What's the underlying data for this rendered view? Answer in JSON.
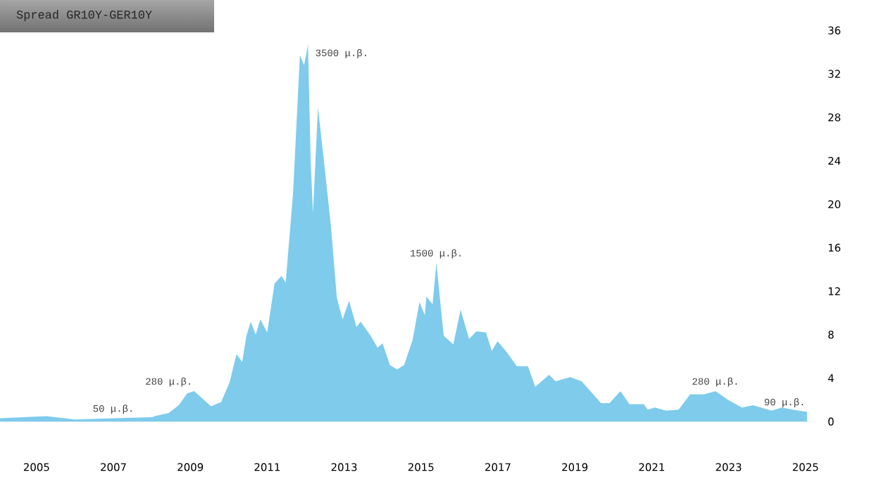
{
  "chart_data": {
    "type": "area",
    "title": "Spread GR10Y-GER10Y",
    "color": "#7ecbec",
    "x": [
      2004.05,
      2005.26,
      2006.0,
      2007.0,
      2008.0,
      2008.08,
      2008.44,
      2008.7,
      2008.92,
      2009.1,
      2009.54,
      2009.8,
      2010.02,
      2010.2,
      2010.35,
      2010.46,
      2010.57,
      2010.7,
      2010.82,
      2011.0,
      2011.19,
      2011.37,
      2011.48,
      2011.67,
      2011.85,
      2011.96,
      2012.06,
      2012.13,
      2012.19,
      2012.32,
      2012.45,
      2012.66,
      2012.81,
      2012.96,
      2013.13,
      2013.32,
      2013.43,
      2013.69,
      2013.87,
      2014.0,
      2014.19,
      2014.38,
      2014.56,
      2014.78,
      2014.96,
      2015.1,
      2015.14,
      2015.3,
      2015.4,
      2015.59,
      2015.84,
      2016.03,
      2016.25,
      2016.44,
      2016.69,
      2016.84,
      2016.99,
      2017.23,
      2017.49,
      2017.78,
      2017.97,
      2018.2,
      2018.33,
      2018.5,
      2018.88,
      2019.18,
      2019.68,
      2019.9,
      2020.19,
      2020.42,
      2020.79,
      2020.9,
      2021.08,
      2021.38,
      2021.7,
      2022.0,
      2022.36,
      2022.66,
      2022.98,
      2023.35,
      2023.64,
      2024.12,
      2024.38,
      2024.82,
      2025.04
    ],
    "values": [
      0.3,
      0.5,
      0.2,
      0.3,
      0.4,
      0.5,
      0.8,
      1.5,
      2.6,
      2.8,
      1.4,
      1.8,
      3.6,
      6.2,
      5.5,
      7.9,
      9.2,
      8.0,
      9.4,
      8.2,
      12.7,
      13.4,
      12.8,
      20.9,
      33.7,
      32.8,
      34.7,
      24.0,
      19.2,
      28.9,
      24.8,
      17.9,
      11.4,
      9.4,
      11.1,
      8.7,
      9.2,
      7.9,
      6.8,
      7.2,
      5.2,
      4.8,
      5.2,
      7.5,
      11.0,
      9.8,
      11.5,
      10.8,
      14.6,
      7.9,
      7.1,
      10.3,
      7.6,
      8.3,
      8.2,
      6.5,
      7.4,
      6.4,
      5.1,
      5.1,
      3.2,
      3.9,
      4.3,
      3.7,
      4.1,
      3.7,
      1.7,
      1.7,
      2.8,
      1.6,
      1.6,
      1.1,
      1.3,
      1.0,
      1.1,
      2.5,
      2.5,
      2.8,
      2.0,
      1.3,
      1.5,
      1.0,
      1.3,
      1.0,
      0.9
    ],
    "xlim": [
      2004.05,
      2025.3
    ],
    "ylim": [
      0,
      36
    ],
    "xticks": [
      2005,
      2007,
      2009,
      2011,
      2013,
      2015,
      2017,
      2019,
      2021,
      2023,
      2025
    ],
    "yticks": [
      0,
      4,
      8,
      12,
      16,
      20,
      24,
      28,
      32,
      36
    ],
    "annotations": [
      {
        "text": "50 μ.β.",
        "x": 2007.0,
        "y": 0.3
      },
      {
        "text": "280 μ.β.",
        "x": 2009.1,
        "y": 2.8
      },
      {
        "text": "3500 μ.β.",
        "x": 2012.06,
        "y": 34.7
      },
      {
        "text": "1500 μ.β.",
        "x": 2015.4,
        "y": 14.6
      },
      {
        "text": "280 μ.β.",
        "x": 2022.66,
        "y": 2.8
      },
      {
        "text": "90 μ.β.",
        "x": 2025.04,
        "y": 0.9
      }
    ]
  }
}
